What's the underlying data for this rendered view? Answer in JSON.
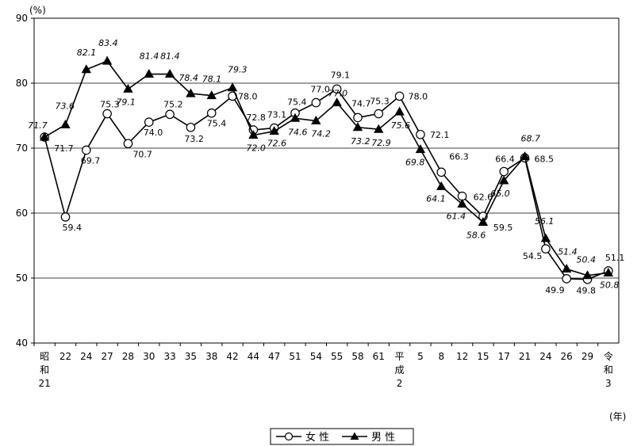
{
  "chart_data": {
    "type": "line",
    "y_unit_label": "(%)",
    "x_unit_label": "(年)",
    "ylim": [
      40,
      90
    ],
    "yticks": [
      "40",
      "50",
      "60",
      "70",
      "80",
      "90"
    ],
    "grid": true,
    "legend_position": "bottom-center",
    "x_categories": [
      [
        "昭",
        "和",
        "21"
      ],
      [
        "22"
      ],
      [
        "24"
      ],
      [
        "27"
      ],
      [
        "28"
      ],
      [
        "30"
      ],
      [
        "33"
      ],
      [
        "35"
      ],
      [
        "38"
      ],
      [
        "42"
      ],
      [
        "44"
      ],
      [
        "47"
      ],
      [
        "51"
      ],
      [
        "54"
      ],
      [
        "55"
      ],
      [
        "58"
      ],
      [
        "61"
      ],
      [
        "平",
        "成",
        "2"
      ],
      [
        "5"
      ],
      [
        "8"
      ],
      [
        "12"
      ],
      [
        "15"
      ],
      [
        "17"
      ],
      [
        "21"
      ],
      [
        "24"
      ],
      [
        "26"
      ],
      [
        "29"
      ],
      [
        "令",
        "和",
        "3"
      ]
    ],
    "series": [
      {
        "name": "女 性",
        "marker": "circle-open",
        "values": [
          71.7,
          59.4,
          69.7,
          75.3,
          70.7,
          74.0,
          75.2,
          73.2,
          75.4,
          78.0,
          72.8,
          73.1,
          75.4,
          77.0,
          79.1,
          74.7,
          75.3,
          78.0,
          72.1,
          66.3,
          62.6,
          59.5,
          66.4,
          68.5,
          54.5,
          49.9,
          49.8,
          51.1
        ],
        "labels": [
          "71.7",
          "59.4",
          "69.7",
          "75.3",
          "70.7",
          "74.0",
          "75.2",
          "73.2",
          "75.4",
          "78.0",
          "72.8",
          "73.1",
          "75.4",
          "77.0",
          "79.1",
          "74.7",
          "75.3",
          "78.0",
          "72.1",
          "66.3",
          "62.6",
          "59.5",
          "66.4",
          "68.5",
          "54.5",
          "49.9",
          "49.8",
          "51.1"
        ]
      },
      {
        "name": "男 性",
        "marker": "triangle-filled",
        "values": [
          71.7,
          73.6,
          82.1,
          83.4,
          79.1,
          81.4,
          81.4,
          78.4,
          78.1,
          79.3,
          72.0,
          72.6,
          74.6,
          74.2,
          77.0,
          73.2,
          72.9,
          75.6,
          69.8,
          64.1,
          61.4,
          58.6,
          65.0,
          68.7,
          56.1,
          51.4,
          50.4,
          50.8
        ],
        "labels": [
          "71.7",
          "73.6",
          "82.1",
          "83.4",
          "79.1",
          "81.4",
          "81.4",
          "78.4",
          "78.1",
          "79.3",
          "72.0",
          "72.6",
          "74.6",
          "74.2",
          "77.0",
          "73.2",
          "72.9",
          "75.6",
          "69.8",
          "64.1",
          "61.4",
          "58.6",
          "65.0",
          "68.7",
          "56.1",
          "51.4",
          "50.4",
          "50.8"
        ]
      }
    ]
  }
}
